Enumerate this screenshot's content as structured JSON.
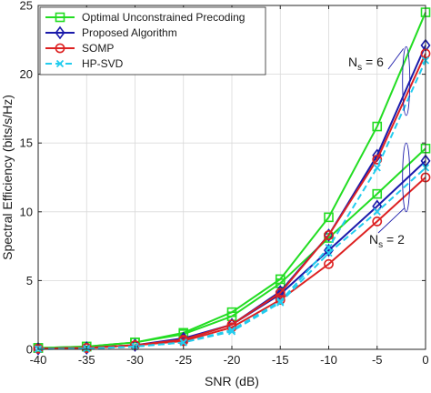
{
  "chart_data": {
    "type": "line",
    "xlabel": "SNR (dB)",
    "ylabel": "Spectral Efficiency (bits/s/Hz)",
    "xlim": [
      -40,
      0
    ],
    "ylim": [
      0,
      25
    ],
    "x": [
      -40,
      -35,
      -30,
      -25,
      -20,
      -15,
      -10,
      -5,
      0
    ],
    "x_tick_labels": [
      "-40",
      "-35",
      "-30",
      "-25",
      "-20",
      "-15",
      "-10",
      "-5",
      "0"
    ],
    "y_ticks": [
      0,
      5,
      10,
      15,
      20,
      25
    ],
    "y_tick_labels": [
      "0",
      "5",
      "10",
      "15",
      "20",
      "25"
    ],
    "grid": true,
    "legend_position": "top-left",
    "series": [
      {
        "name": "Optimal Unconstrained Precoding",
        "group": "Ns = 6",
        "color": "#22dd22",
        "marker": "square",
        "dashed": false,
        "values": [
          0.1,
          0.2,
          0.5,
          1.2,
          2.7,
          5.1,
          9.6,
          16.2,
          24.5
        ]
      },
      {
        "name": "Optimal Unconstrained Precoding",
        "group": "Ns = 2",
        "color": "#22dd22",
        "marker": "square",
        "dashed": false,
        "values": [
          0.1,
          0.2,
          0.5,
          1.1,
          2.4,
          4.8,
          8.1,
          11.3,
          14.6
        ]
      },
      {
        "name": "Proposed Algorithm",
        "group": "Ns = 6",
        "color": "#1a1aaa",
        "marker": "diamond",
        "dashed": false,
        "values": [
          0.05,
          0.1,
          0.3,
          0.8,
          1.8,
          4.2,
          8.3,
          14.1,
          22.1
        ]
      },
      {
        "name": "Proposed Algorithm",
        "group": "Ns = 2",
        "color": "#1a1aaa",
        "marker": "diamond",
        "dashed": false,
        "values": [
          0.05,
          0.1,
          0.3,
          0.7,
          1.8,
          4.0,
          7.2,
          10.4,
          13.7
        ]
      },
      {
        "name": "SOMP",
        "group": "Ns = 6",
        "color": "#dd2222",
        "marker": "circle",
        "dashed": false,
        "values": [
          0.05,
          0.1,
          0.3,
          0.7,
          1.8,
          4.1,
          8.3,
          13.8,
          21.5
        ]
      },
      {
        "name": "SOMP",
        "group": "Ns = 2",
        "color": "#dd2222",
        "marker": "circle",
        "dashed": false,
        "values": [
          0.05,
          0.1,
          0.3,
          0.6,
          1.6,
          3.6,
          6.2,
          9.3,
          12.5
        ]
      },
      {
        "name": "HP-SVD",
        "group": "Ns = 6",
        "color": "#22ccee",
        "marker": "x",
        "dashed": true,
        "values": [
          0.02,
          0.05,
          0.2,
          0.5,
          1.4,
          3.5,
          7.4,
          13.2,
          21.0
        ]
      },
      {
        "name": "HP-SVD",
        "group": "Ns = 2",
        "color": "#22ccee",
        "marker": "x",
        "dashed": true,
        "values": [
          0.02,
          0.05,
          0.2,
          0.5,
          1.3,
          3.4,
          7.0,
          10.0,
          13.2
        ]
      }
    ],
    "legend": [
      {
        "label": "Optimal Unconstrained Precoding",
        "color": "#22dd22",
        "marker": "square",
        "dashed": false
      },
      {
        "label": "Proposed Algorithm",
        "color": "#1a1aaa",
        "marker": "diamond",
        "dashed": false
      },
      {
        "label": "SOMP",
        "color": "#dd2222",
        "marker": "circle",
        "dashed": false
      },
      {
        "label": "HP-SVD",
        "color": "#22ccee",
        "marker": "x",
        "dashed": true
      }
    ],
    "annotations": [
      {
        "main": "N",
        "sub": "s",
        "rest": " = 6",
        "target_x": -2,
        "target_y": 19.5,
        "span": [
          17,
          22
        ]
      },
      {
        "main": "N",
        "sub": "s",
        "rest": " = 2",
        "target_x": -2,
        "target_y": 12.5,
        "span": [
          10,
          15
        ]
      }
    ]
  }
}
